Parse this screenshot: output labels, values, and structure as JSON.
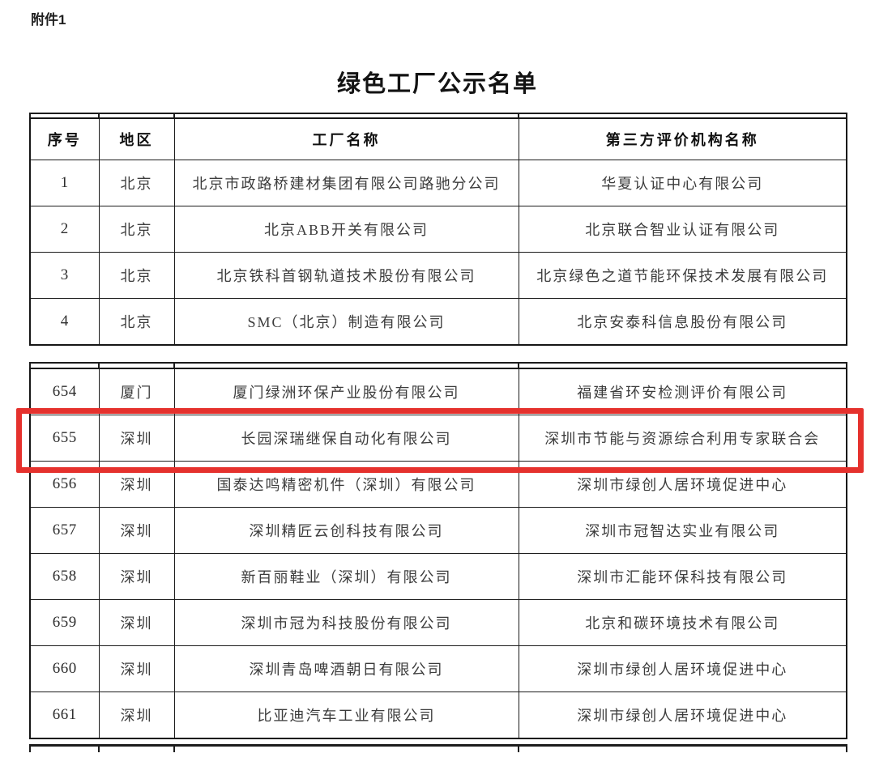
{
  "attachment_label": "附件1",
  "title": "绿色工厂公示名单",
  "highlight_color": "#e5312d",
  "table": {
    "columns": [
      "序号",
      "地区",
      "工厂名称",
      "第三方评价机构名称"
    ],
    "highlighted_row_no": "655",
    "segments": [
      {
        "rows": [
          {
            "no": "1",
            "region": "北京",
            "factory": "北京市政路桥建材集团有限公司路驰分公司",
            "agency": "华夏认证中心有限公司"
          },
          {
            "no": "2",
            "region": "北京",
            "factory": "北京ABB开关有限公司",
            "agency": "北京联合智业认证有限公司"
          },
          {
            "no": "3",
            "region": "北京",
            "factory": "北京铁科首钢轨道技术股份有限公司",
            "agency": "北京绿色之道节能环保技术发展有限公司"
          },
          {
            "no": "4",
            "region": "北京",
            "factory": "SMC（北京）制造有限公司",
            "agency": "北京安泰科信息股份有限公司"
          }
        ]
      },
      {
        "rows": [
          {
            "no": "654",
            "region": "厦门",
            "factory": "厦门绿洲环保产业股份有限公司",
            "agency": "福建省环安检测评价有限公司"
          },
          {
            "no": "655",
            "region": "深圳",
            "factory": "长园深瑞继保自动化有限公司",
            "agency": "深圳市节能与资源综合利用专家联合会"
          },
          {
            "no": "656",
            "region": "深圳",
            "factory": "国泰达鸣精密机件（深圳）有限公司",
            "agency": "深圳市绿创人居环境促进中心"
          },
          {
            "no": "657",
            "region": "深圳",
            "factory": "深圳精匠云创科技有限公司",
            "agency": "深圳市冠智达实业有限公司"
          },
          {
            "no": "658",
            "region": "深圳",
            "factory": "新百丽鞋业（深圳）有限公司",
            "agency": "深圳市汇能环保科技有限公司"
          },
          {
            "no": "659",
            "region": "深圳",
            "factory": "深圳市冠为科技股份有限公司",
            "agency": "北京和碳环境技术有限公司"
          },
          {
            "no": "660",
            "region": "深圳",
            "factory": "深圳青岛啤酒朝日有限公司",
            "agency": "深圳市绿创人居环境促进中心"
          },
          {
            "no": "661",
            "region": "深圳",
            "factory": "比亚迪汽车工业有限公司",
            "agency": "深圳市绿创人居环境促进中心"
          }
        ]
      }
    ]
  }
}
